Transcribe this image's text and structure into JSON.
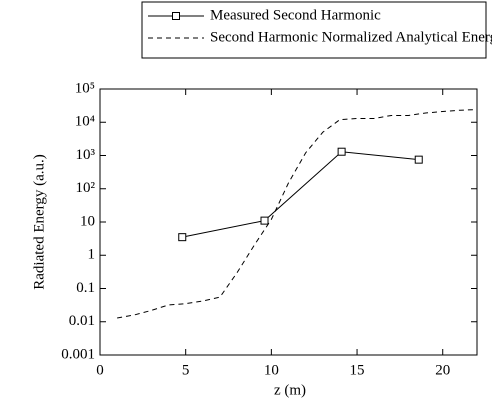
{
  "chart_data": {
    "type": "line",
    "xlabel": "z (m)",
    "ylabel": "Radiated Energy (a.u.)",
    "xlim": [
      0,
      22
    ],
    "xticks": [
      0,
      5,
      10,
      15,
      20
    ],
    "ylim": [
      0.001,
      100000
    ],
    "log_y": true,
    "yticks": [
      {
        "value": 0.001,
        "label": "0.001"
      },
      {
        "value": 0.01,
        "label": "0.01"
      },
      {
        "value": 0.1,
        "label": "0.1"
      },
      1,
      10,
      {
        "value": 100,
        "label": "10²"
      },
      {
        "value": 1000,
        "label": "10³"
      },
      {
        "value": 10000,
        "label": "10⁴"
      },
      {
        "value": 100000,
        "label": "10⁵"
      }
    ],
    "series": [
      {
        "name": "Measured Second Harmonic",
        "color": "#000000",
        "style": "solid",
        "marker": "square",
        "x": [
          4.8,
          9.6,
          14.1,
          18.6
        ],
        "values": [
          3.5,
          11,
          1300,
          750
        ]
      },
      {
        "name": "Second Harmonic Normalized Analytical Energy",
        "color": "#000000",
        "style": "dashed",
        "x": [
          1,
          2,
          3,
          4,
          5,
          6,
          7,
          8,
          9,
          10,
          11,
          12,
          13,
          14,
          15,
          16,
          17,
          18,
          19,
          20,
          21,
          22
        ],
        "values": [
          0.013,
          0.016,
          0.022,
          0.032,
          0.035,
          0.042,
          0.055,
          0.3,
          2,
          12,
          150,
          1200,
          5000,
          12000,
          13000,
          13000,
          16000,
          16000,
          19000,
          21000,
          23000,
          24000
        ]
      }
    ]
  }
}
